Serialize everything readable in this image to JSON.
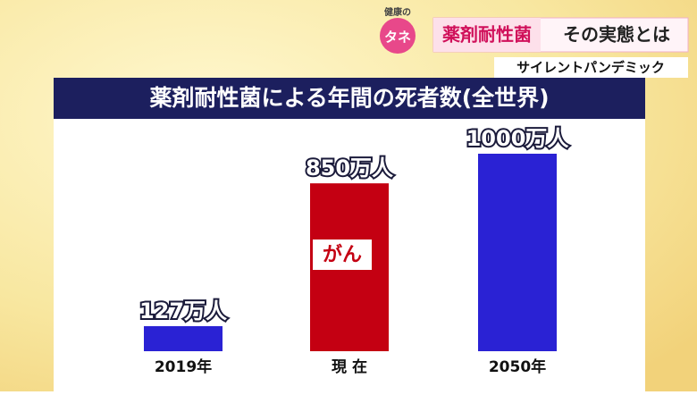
{
  "header": {
    "logo_small": "健康の",
    "logo": "タネ",
    "topic": "薬剤耐性菌",
    "topic_rest": "その実態とは",
    "subtitle": "サイレントパンデミック"
  },
  "chart_data": {
    "type": "bar",
    "title": "薬剤耐性菌による年間の死者数(全世界)",
    "categories": [
      "2019年",
      "現 在",
      "2050年"
    ],
    "values": [
      127,
      850,
      1000
    ],
    "value_labels": [
      "127万人",
      "850万人",
      "1000万人"
    ],
    "colors": [
      "#2a22d4",
      "#c40012",
      "#2a22d4"
    ],
    "annotation": "がん"
  }
}
